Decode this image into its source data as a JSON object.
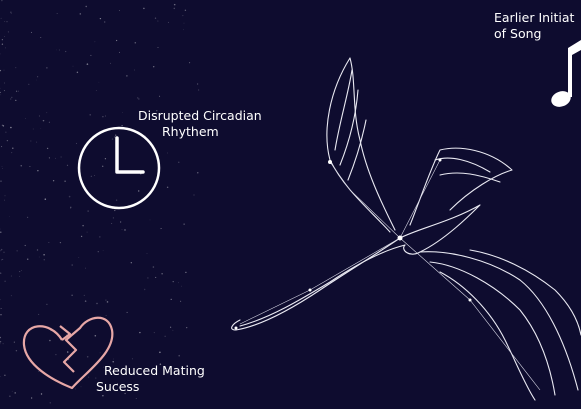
{
  "labels": [
    {
      "name": "song",
      "lines": [
        "Earlier Initiat",
        "of Song"
      ]
    },
    {
      "name": "circadian",
      "lines": [
        "Disrupted Circadian",
        "Rhythem"
      ]
    },
    {
      "name": "mating",
      "lines": [
        "Reduced Mating",
        "Sucess"
      ]
    }
  ]
}
